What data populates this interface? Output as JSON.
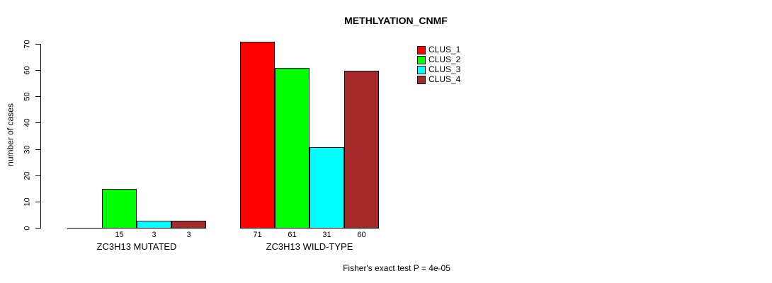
{
  "figure": {
    "title": "METHLYATION_CNMF",
    "ylabel": "number of cases",
    "annotation": "Fisher's exact test P = 4e-05"
  },
  "chart_data": {
    "type": "bar",
    "title": "METHLYATION_CNMF",
    "xlabel": "",
    "ylabel": "number of cases",
    "ylim": [
      0,
      70
    ],
    "yticks": [
      0,
      10,
      20,
      30,
      40,
      50,
      60,
      70
    ],
    "grid": false,
    "categories": [
      "ZC3H13 MUTATED",
      "ZC3H13 WILD-TYPE"
    ],
    "series": [
      {
        "name": "CLUS_1",
        "color": "#ff0000",
        "values": [
          0,
          71
        ]
      },
      {
        "name": "CLUS_2",
        "color": "#00ff00",
        "values": [
          15,
          61
        ]
      },
      {
        "name": "CLUS_3",
        "color": "#00ffff",
        "values": [
          3,
          31
        ]
      },
      {
        "name": "CLUS_4",
        "color": "#a52a2a",
        "values": [
          3,
          60
        ]
      }
    ],
    "bar_value_labels": {
      "ZC3H13 MUTATED": [
        null,
        15,
        3,
        3
      ],
      "ZC3H13 WILD-TYPE": [
        71,
        61,
        31,
        60
      ]
    },
    "zero_values_unlabeled": true,
    "legend": {
      "position": "top-right",
      "entries": [
        "CLUS_1",
        "CLUS_2",
        "CLUS_3",
        "CLUS_4"
      ]
    },
    "annotation": "Fisher's exact test P = 4e-05",
    "axis_color": "#000000",
    "bar_border_color": "#000000"
  }
}
